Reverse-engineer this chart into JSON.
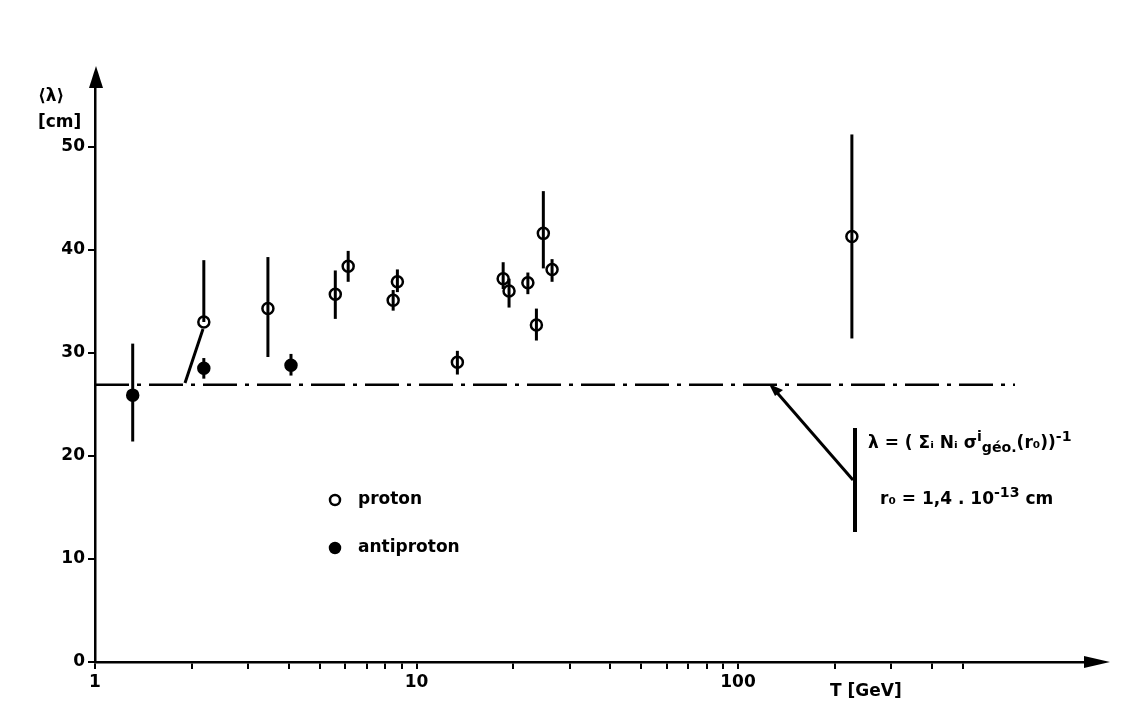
{
  "chart_data": {
    "type": "scatter",
    "xlabel": "T [GeV]",
    "ylabel": "⟨λ⟩ [cm]",
    "log": "x",
    "xlim": [
      1,
      1200
    ],
    "ylim": [
      0,
      56
    ],
    "xticks": [
      1,
      {
        "value": 2,
        "label": null
      },
      {
        "value": 3,
        "label": null
      },
      {
        "value": 4,
        "label": null
      },
      {
        "value": 5,
        "label": null
      },
      {
        "value": 6,
        "label": null
      },
      {
        "value": 7,
        "label": null
      },
      {
        "value": 8,
        "label": null
      },
      {
        "value": 9,
        "label": null
      },
      10,
      {
        "value": 20,
        "label": null
      },
      {
        "value": 30,
        "label": null
      },
      {
        "value": 40,
        "label": null
      },
      {
        "value": 50,
        "label": null
      },
      {
        "value": 60,
        "label": null
      },
      {
        "value": 70,
        "label": null
      },
      {
        "value": 80,
        "label": null
      },
      {
        "value": 90,
        "label": null
      },
      100,
      {
        "value": 200,
        "label": null
      },
      {
        "value": 300,
        "label": null
      },
      {
        "value": 400,
        "label": null
      },
      {
        "value": 500,
        "label": null
      }
    ],
    "yticks": [
      0,
      10,
      20,
      30,
      40,
      50
    ],
    "grid": false,
    "legend": "bottom",
    "marker": "circle",
    "series": [
      {
        "name": "proton",
        "color": "#000000",
        "x": [
          2.18,
          3.45,
          5.59,
          6.13,
          8.46,
          8.72,
          13.4,
          18.6,
          19.4,
          22.2,
          23.6,
          24.8,
          26.4,
          226
        ],
        "values": [
          33.0,
          34.3,
          35.7,
          38.4,
          35.1,
          36.9,
          29.1,
          37.2,
          36.0,
          36.8,
          32.7,
          41.6,
          38.1,
          41.3
        ],
        "errors": [
          [
            33.0,
            39.0
          ],
          [
            29.6,
            39.3
          ],
          [
            33.3,
            38.0
          ],
          [
            36.9,
            39.9
          ],
          [
            34.1,
            36.1
          ],
          [
            35.9,
            38.1
          ],
          [
            27.9,
            30.2
          ],
          [
            36.2,
            38.8
          ],
          [
            34.4,
            37.2
          ],
          [
            35.7,
            37.8
          ],
          [
            31.2,
            34.3
          ],
          [
            38.2,
            45.7
          ],
          [
            36.9,
            39.1
          ],
          [
            31.4,
            51.2
          ]
        ]
      },
      {
        "name": "antiproton",
        "color": "#000000",
        "x": [
          1.31,
          2.18,
          4.07
        ],
        "values": [
          25.9,
          28.5,
          28.8
        ],
        "errors": [
          [
            21.4,
            30.9
          ],
          [
            27.5,
            29.5
          ],
          [
            27.8,
            29.9
          ]
        ]
      }
    ],
    "ref_lines": [
      {
        "axis": "y",
        "value": 26.9,
        "line_style": "dashdot"
      }
    ],
    "annotations": [
      "λ = ( Σᵢ Nᵢ σ$^{i}$$_{géo.}$(r₀))$^{-1}$",
      "r₀ = 1,4 . 10$^{-13}$ cm"
    ]
  }
}
